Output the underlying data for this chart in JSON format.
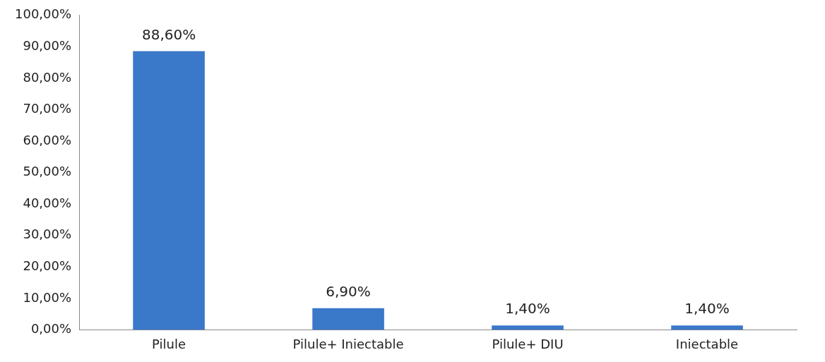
{
  "chart_data": {
    "type": "bar",
    "categories": [
      "Pilule",
      "Pilule+ Iniectable",
      "Pilule+ DIU",
      "Iniectable"
    ],
    "values": [
      88.6,
      6.9,
      1.4,
      1.4
    ],
    "value_labels": [
      "88,60%",
      "6,90%",
      "1,40%",
      "1,40%"
    ],
    "color": "#3a78c9",
    "ylim": [
      0,
      100
    ],
    "yticks": [
      {
        "value": 0,
        "label": "0,00%"
      },
      {
        "value": 10,
        "label": "10,00%"
      },
      {
        "value": 20,
        "label": "20,00%"
      },
      {
        "value": 30,
        "label": "30,00%"
      },
      {
        "value": 40,
        "label": "40,00%"
      },
      {
        "value": 50,
        "label": "50,00%"
      },
      {
        "value": 60,
        "label": "60,00%"
      },
      {
        "value": 70,
        "label": "70,00%"
      },
      {
        "value": 80,
        "label": "80,00%"
      },
      {
        "value": 90,
        "label": "90,00%"
      },
      {
        "value": 100,
        "label": "100,00%"
      }
    ],
    "grid": false,
    "legend": false
  }
}
